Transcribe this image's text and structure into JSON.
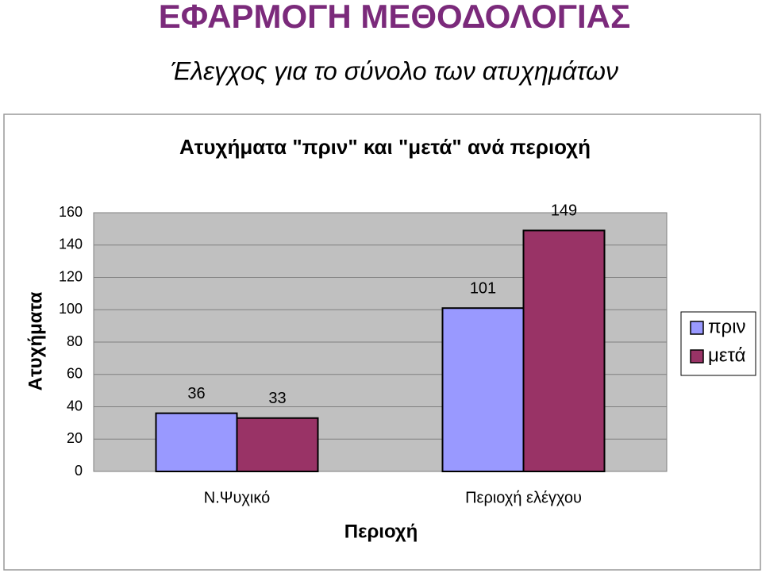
{
  "header": {
    "title": "ΕΦΑΡΜΟΓΗ ΜΕΘΟΔΟΛΟΓΙΑΣ",
    "subtitle": "Έλεγχος για το σύνολο των ατυχημάτων"
  },
  "chart_data": {
    "type": "bar",
    "title": "Ατυχήματα \"πριν\" και \"μετά\" ανά περιοχή",
    "x_label": "Περιοχή",
    "y_label": "Ατυχήματα",
    "categories": [
      "Ν.Ψυχικό",
      "Περιοχή ελέγχου"
    ],
    "series": [
      {
        "name": "πριν",
        "color": "#9999ff",
        "values": [
          36,
          101
        ]
      },
      {
        "name": "μετά",
        "color": "#993366",
        "values": [
          33,
          149
        ]
      }
    ],
    "ylim": [
      0,
      160
    ],
    "yticks": [
      0,
      20,
      40,
      60,
      80,
      100,
      120,
      140,
      160
    ],
    "grid": true,
    "legend": "right"
  }
}
